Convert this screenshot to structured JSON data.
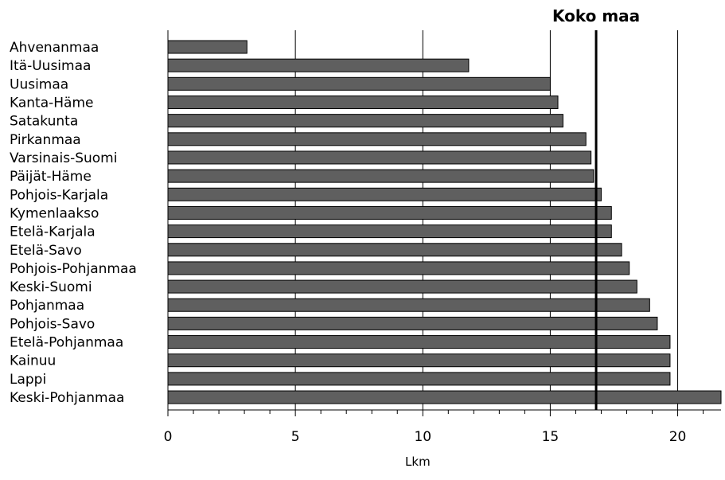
{
  "chart_data": {
    "type": "bar",
    "orientation": "horizontal",
    "categories": [
      "Ahvenanmaa",
      "Itä-Uusimaa",
      "Uusimaa",
      "Kanta-Häme",
      "Satakunta",
      "Pirkanmaa",
      "Varsinais-Suomi",
      "Päijät-Häme",
      "Pohjois-Karjala",
      "Kymenlaakso",
      "Etelä-Karjala",
      "Etelä-Savo",
      "Pohjois-Pohjanmaa",
      "Keski-Suomi",
      "Pohjanmaa",
      "Pohjois-Savo",
      "Etelä-Pohjanmaa",
      "Kainuu",
      "Lappi",
      "Keski-Pohjanmaa"
    ],
    "values": [
      3.1,
      11.8,
      15.0,
      15.3,
      15.5,
      16.4,
      16.6,
      16.7,
      17.0,
      17.4,
      17.4,
      17.8,
      18.1,
      18.4,
      18.9,
      19.2,
      19.7,
      19.7,
      19.7,
      21.7
    ],
    "xlabel": "Lkm",
    "ylabel": "",
    "xlim": [
      0,
      21.7
    ],
    "xticks": [
      0,
      5,
      10,
      15,
      20
    ],
    "grid": "vertical",
    "reference_line": {
      "label": "Koko maa",
      "value": 16.8
    },
    "colors": {
      "bar": "#5f5f5f",
      "bar_edge": "#000000",
      "grid": "#000000"
    }
  }
}
